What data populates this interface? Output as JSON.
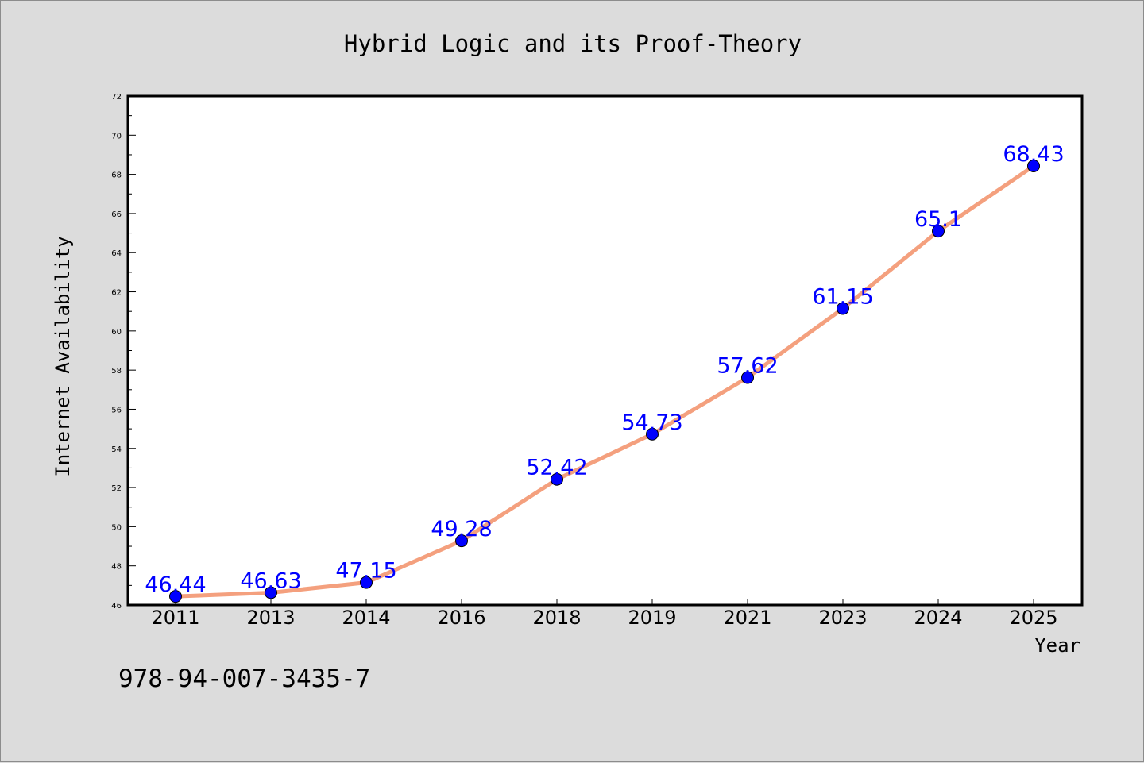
{
  "chart_data": {
    "type": "line",
    "title": "Hybrid Logic and its Proof-Theory",
    "xlabel": "Year",
    "ylabel": "Internet Availability",
    "categories": [
      "2011",
      "2013",
      "2014",
      "2016",
      "2018",
      "2019",
      "2021",
      "2023",
      "2024",
      "2025"
    ],
    "series": [
      {
        "values": [
          46.44,
          46.63,
          47.15,
          49.28,
          52.42,
          54.73,
          57.62,
          61.15,
          65.1,
          68.43
        ],
        "labels": [
          "46.44",
          "46.63",
          "47.15",
          "49.28",
          "52.42",
          "54.73",
          "57.62",
          "61.15",
          "65.1",
          "68.43"
        ]
      }
    ],
    "ylim": [
      46,
      72
    ],
    "yticks": [
      "46",
      "48",
      "50",
      "52",
      "54",
      "56",
      "58",
      "60",
      "62",
      "64",
      "66",
      "68",
      "70",
      "72"
    ],
    "grid": false,
    "legend": "none",
    "colors": {
      "line": "#f4a07e",
      "marker": "#0000ff",
      "data_label": "#0000ff",
      "background": "#dcdcdc",
      "plot_bg": "#ffffff"
    }
  },
  "footer_text": "978-94-007-3435-7"
}
